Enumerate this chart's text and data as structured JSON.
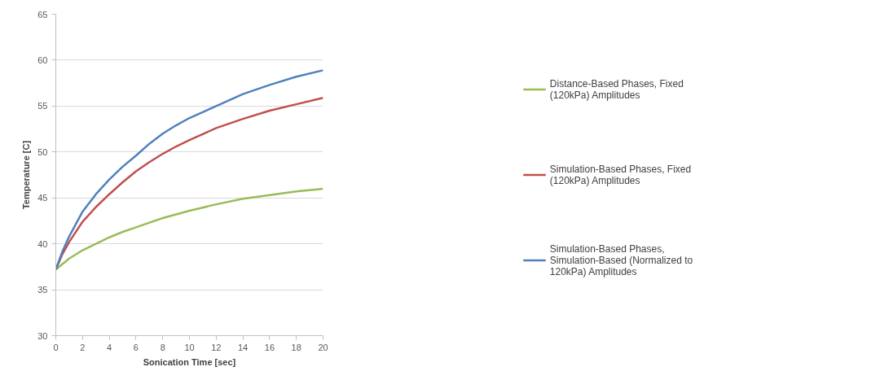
{
  "chart_data": {
    "type": "line",
    "xlabel": "Sonication Time [sec]",
    "ylabel": "Temperature [C]",
    "x": [
      0,
      0.5,
      1,
      2,
      3,
      4,
      5,
      6,
      7,
      8,
      9,
      10,
      12,
      14,
      16,
      18,
      20
    ],
    "series": [
      {
        "name": "Distance-Based Phases, Fixed (120kPa) Amplitudes",
        "color": "#9bbb59",
        "values": [
          37.2,
          37.8,
          38.4,
          39.3,
          40.0,
          40.7,
          41.3,
          41.8,
          42.3,
          42.8,
          43.2,
          43.6,
          44.3,
          44.9,
          45.3,
          45.7,
          46.0
        ]
      },
      {
        "name": "Simulation-Based Phases, Fixed (120kPa) Amplitudes",
        "color": "#c0504d",
        "values": [
          37.2,
          38.9,
          40.2,
          42.4,
          44.0,
          45.4,
          46.7,
          47.9,
          48.9,
          49.8,
          50.6,
          51.3,
          52.6,
          53.6,
          54.5,
          55.2,
          55.9
        ]
      },
      {
        "name": "Simulation-Based Phases, Simulation-Based (Normalized to 120kPa) Amplitudes",
        "color": "#4f81bd",
        "values": [
          37.2,
          39.2,
          40.8,
          43.5,
          45.4,
          47.0,
          48.4,
          49.6,
          50.9,
          52.0,
          52.9,
          53.7,
          55.0,
          56.3,
          57.3,
          58.2,
          58.9
        ]
      }
    ],
    "xlim": [
      0,
      20
    ],
    "xticks": [
      0,
      2,
      4,
      6,
      8,
      10,
      12,
      14,
      16,
      18,
      20
    ],
    "ylim": [
      30,
      65
    ],
    "yticks": [
      30,
      35,
      40,
      45,
      50,
      55,
      60,
      65
    ],
    "grid": "y",
    "legend": "right",
    "marker": "none",
    "line_style": "solid"
  }
}
